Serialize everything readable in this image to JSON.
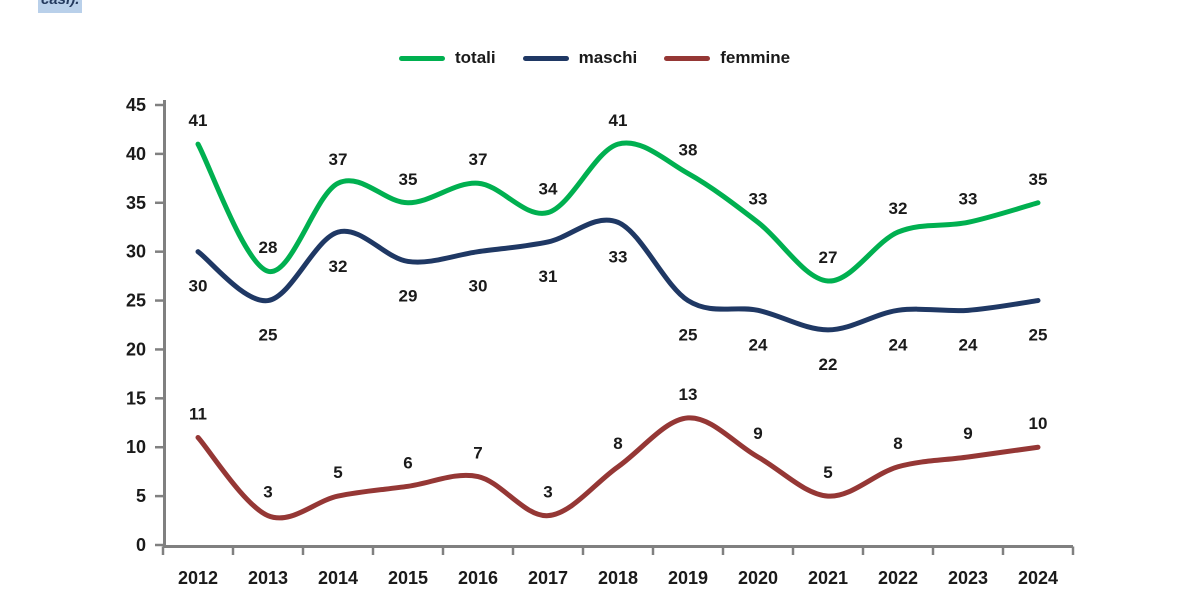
{
  "selection_fragment": {
    "text": "casi).",
    "highlight_color": "#b9d0ea"
  },
  "chart_data": {
    "type": "line",
    "smooth": true,
    "title": "",
    "xlabel": "",
    "ylabel": "",
    "categories": [
      "2012",
      "2013",
      "2014",
      "2015",
      "2016",
      "2017",
      "2018",
      "2019",
      "2020",
      "2021",
      "2022",
      "2023",
      "2024"
    ],
    "series": [
      {
        "name": "totali",
        "color": "#00B050",
        "label_position": "above",
        "values": [
          41,
          28,
          37,
          35,
          37,
          34,
          41,
          38,
          33,
          27,
          32,
          33,
          35
        ]
      },
      {
        "name": "maschi",
        "color": "#1F3864",
        "label_position": "below",
        "values": [
          30,
          25,
          32,
          29,
          30,
          31,
          33,
          25,
          24,
          22,
          24,
          24,
          25
        ]
      },
      {
        "name": "femmine",
        "color": "#953735",
        "label_position": "above",
        "values": [
          11,
          3,
          5,
          6,
          7,
          3,
          8,
          13,
          9,
          5,
          8,
          9,
          10
        ]
      }
    ],
    "ylim": [
      0,
      45
    ],
    "ytick_step": 5,
    "grid": false,
    "legend_position": "top",
    "axis_color": "#808080",
    "label_color": "#1a1a1a"
  }
}
